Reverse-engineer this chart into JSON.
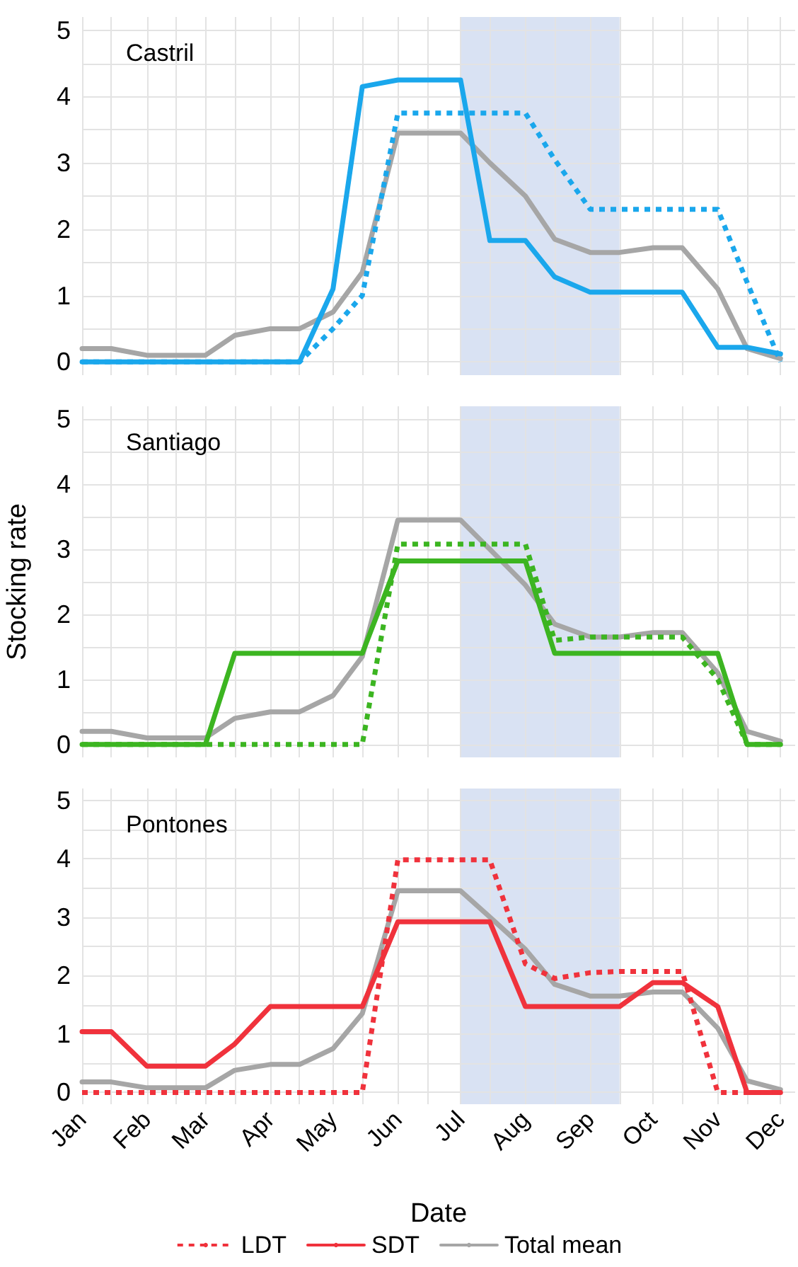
{
  "chart_data": [
    {
      "type": "line",
      "title": "Castril",
      "x": [
        "--01-01",
        "--01-15",
        "--02-01",
        "--02-15",
        "--03-01",
        "--03-15",
        "--04-01",
        "--04-15",
        "--05-01",
        "--05-15",
        "--06-01",
        "--06-15",
        "--07-01",
        "--07-15",
        "--08-01",
        "--08-15",
        "--09-01",
        "--09-15",
        "--10-01",
        "--10-15",
        "--11-01",
        "--11-15",
        "--12-01"
      ],
      "series": [
        {
          "color": "#1aa7ec",
          "line_style": "dotted",
          "values": [
            0,
            0,
            0,
            0,
            0,
            0,
            0,
            0,
            0.5,
            1.0,
            3.75,
            3.75,
            3.75,
            3.75,
            3.75,
            3.05,
            2.3,
            2.3,
            2.3,
            2.3,
            2.3,
            1.2,
            0
          ]
        },
        {
          "color": "#1aa7ec",
          "line_style": "solid",
          "values": [
            0,
            0,
            0,
            0,
            0,
            0,
            0,
            0,
            1.1,
            4.15,
            4.25,
            4.25,
            4.25,
            1.83,
            1.83,
            1.28,
            1.05,
            1.05,
            1.05,
            1.05,
            0.22,
            0.22,
            0.12
          ]
        },
        {
          "color": "#a6a6a6",
          "line_style": "solid",
          "values": [
            0.2,
            0.2,
            0.1,
            0.1,
            0.1,
            0.4,
            0.5,
            0.5,
            0.75,
            1.35,
            3.45,
            3.45,
            3.45,
            3.0,
            2.5,
            1.85,
            1.65,
            1.65,
            1.72,
            1.72,
            1.1,
            0.2,
            0.05
          ]
        }
      ],
      "xlim": [
        "--01-01",
        "--12-08"
      ],
      "ylim": [
        -0.2,
        5.2
      ],
      "xticks": [
        {
          "value": "--01-01",
          "label": "Jan"
        },
        {
          "value": "--01-15",
          "label": null
        },
        {
          "value": "--02-01",
          "label": "Feb"
        },
        {
          "value": "--02-15",
          "label": null
        },
        {
          "value": "--03-01",
          "label": "Mar"
        },
        {
          "value": "--03-15",
          "label": null
        },
        {
          "value": "--04-01",
          "label": "Apr"
        },
        {
          "value": "--04-15",
          "label": null
        },
        {
          "value": "--05-01",
          "label": "May"
        },
        {
          "value": "--05-15",
          "label": null
        },
        {
          "value": "--06-01",
          "label": "Jun"
        },
        {
          "value": "--06-15",
          "label": null
        },
        {
          "value": "--07-01",
          "label": "Jul"
        },
        {
          "value": "--07-15",
          "label": null
        },
        {
          "value": "--08-01",
          "label": "Aug"
        },
        {
          "value": "--08-15",
          "label": null
        },
        {
          "value": "--09-01",
          "label": "Sep"
        },
        {
          "value": "--09-15",
          "label": null
        },
        {
          "value": "--10-01",
          "label": "Oct"
        },
        {
          "value": "--10-15",
          "label": null
        },
        {
          "value": "--11-01",
          "label": "Nov"
        },
        {
          "value": "--11-15",
          "label": null
        },
        {
          "value": "--12-01",
          "label": "Dec"
        }
      ],
      "yticks": [
        0,
        {
          "value": 0.5,
          "label": null
        },
        1,
        {
          "value": 1.5,
          "label": null
        },
        2,
        {
          "value": 2.5,
          "label": null
        },
        3,
        {
          "value": 3.5,
          "label": null
        },
        4,
        {
          "value": 4.5,
          "label": null
        },
        5
      ],
      "bands": [
        {
          "axis": "x",
          "from": "--07-01",
          "to": "--09-15",
          "color": "#d9e2f3"
        }
      ],
      "grid": true,
      "marker": "none",
      "tick_labels": "y"
    },
    {
      "type": "line",
      "title": "Santiago",
      "ylabel": "Stocking rate",
      "x": [
        "--01-01",
        "--01-15",
        "--02-01",
        "--02-15",
        "--03-01",
        "--03-15",
        "--04-01",
        "--04-15",
        "--05-01",
        "--05-15",
        "--06-01",
        "--06-15",
        "--07-01",
        "--07-15",
        "--08-01",
        "--08-15",
        "--09-01",
        "--09-15",
        "--10-01",
        "--10-15",
        "--11-01",
        "--11-15",
        "--12-01"
      ],
      "series": [
        {
          "color": "#3cb521",
          "line_style": "dotted",
          "values": [
            0,
            0,
            0,
            0,
            0,
            0,
            0,
            0,
            0,
            0,
            3.08,
            3.08,
            3.08,
            3.08,
            3.08,
            1.6,
            1.65,
            1.65,
            1.65,
            1.65,
            1.0,
            0,
            0
          ]
        },
        {
          "color": "#3cb521",
          "line_style": "solid",
          "values": [
            0,
            0,
            0,
            0,
            0,
            1.4,
            1.4,
            1.4,
            1.4,
            1.4,
            2.82,
            2.82,
            2.82,
            2.82,
            2.82,
            1.4,
            1.4,
            1.4,
            1.4,
            1.4,
            1.4,
            0,
            0
          ]
        },
        {
          "color": "#a6a6a6",
          "line_style": "solid",
          "values": [
            0.2,
            0.2,
            0.1,
            0.1,
            0.1,
            0.4,
            0.5,
            0.5,
            0.75,
            1.35,
            3.45,
            3.45,
            3.45,
            3.0,
            2.45,
            1.85,
            1.65,
            1.65,
            1.72,
            1.72,
            1.1,
            0.2,
            0.05
          ]
        }
      ],
      "xlim": [
        "--01-01",
        "--12-08"
      ],
      "ylim": [
        -0.2,
        5.2
      ],
      "xticks": [
        {
          "value": "--01-01",
          "label": "Jan"
        },
        {
          "value": "--01-15",
          "label": null
        },
        {
          "value": "--02-01",
          "label": "Feb"
        },
        {
          "value": "--02-15",
          "label": null
        },
        {
          "value": "--03-01",
          "label": "Mar"
        },
        {
          "value": "--03-15",
          "label": null
        },
        {
          "value": "--04-01",
          "label": "Apr"
        },
        {
          "value": "--04-15",
          "label": null
        },
        {
          "value": "--05-01",
          "label": "May"
        },
        {
          "value": "--05-15",
          "label": null
        },
        {
          "value": "--06-01",
          "label": "Jun"
        },
        {
          "value": "--06-15",
          "label": null
        },
        {
          "value": "--07-01",
          "label": "Jul"
        },
        {
          "value": "--07-15",
          "label": null
        },
        {
          "value": "--08-01",
          "label": "Aug"
        },
        {
          "value": "--08-15",
          "label": null
        },
        {
          "value": "--09-01",
          "label": "Sep"
        },
        {
          "value": "--09-15",
          "label": null
        },
        {
          "value": "--10-01",
          "label": "Oct"
        },
        {
          "value": "--10-15",
          "label": null
        },
        {
          "value": "--11-01",
          "label": "Nov"
        },
        {
          "value": "--11-15",
          "label": null
        },
        {
          "value": "--12-01",
          "label": "Dec"
        }
      ],
      "yticks": [
        0,
        {
          "value": 0.5,
          "label": null
        },
        1,
        {
          "value": 1.5,
          "label": null
        },
        2,
        {
          "value": 2.5,
          "label": null
        },
        3,
        {
          "value": 3.5,
          "label": null
        },
        4,
        {
          "value": 4.5,
          "label": null
        },
        5
      ],
      "bands": [
        {
          "axis": "x",
          "from": "--07-01",
          "to": "--09-15",
          "color": "#d9e2f3"
        }
      ],
      "grid": true,
      "marker": "none",
      "tick_labels": "y"
    },
    {
      "type": "line",
      "title": "Pontones",
      "xlabel": "Date",
      "x": [
        "--01-01",
        "--01-15",
        "--02-01",
        "--02-15",
        "--03-01",
        "--03-15",
        "--04-01",
        "--04-15",
        "--05-01",
        "--05-15",
        "--06-01",
        "--06-15",
        "--07-01",
        "--07-15",
        "--08-01",
        "--08-15",
        "--09-01",
        "--09-15",
        "--10-01",
        "--10-15",
        "--11-01",
        "--11-15",
        "--12-01"
      ],
      "series": [
        {
          "name": "LDT",
          "color": "#f0323c",
          "line_style": "dotted",
          "values": [
            0,
            0,
            0,
            0,
            0,
            0,
            0,
            0,
            0,
            0,
            3.98,
            3.98,
            3.98,
            3.98,
            2.2,
            1.95,
            2.05,
            2.07,
            2.07,
            2.07,
            0,
            0,
            0
          ]
        },
        {
          "name": "SDT",
          "color": "#f0323c",
          "line_style": "solid",
          "values": [
            1.04,
            1.04,
            0.45,
            0.45,
            0.45,
            0.83,
            1.47,
            1.47,
            1.47,
            1.47,
            2.92,
            2.92,
            2.92,
            2.92,
            1.47,
            1.47,
            1.47,
            1.47,
            1.88,
            1.88,
            1.47,
            0,
            0
          ]
        },
        {
          "name": "Total mean",
          "color": "#a6a6a6",
          "line_style": "solid",
          "values": [
            0.18,
            0.18,
            0.08,
            0.08,
            0.08,
            0.38,
            0.48,
            0.48,
            0.75,
            1.35,
            3.45,
            3.45,
            3.45,
            3.0,
            2.45,
            1.85,
            1.65,
            1.65,
            1.72,
            1.72,
            1.1,
            0.2,
            0.05
          ]
        }
      ],
      "xlim": [
        "--01-01",
        "--12-08"
      ],
      "ylim": [
        -0.2,
        5.2
      ],
      "xticks": [
        {
          "value": "--01-01",
          "label": "Jan"
        },
        {
          "value": "--01-15",
          "label": null
        },
        {
          "value": "--02-01",
          "label": "Feb"
        },
        {
          "value": "--02-15",
          "label": null
        },
        {
          "value": "--03-01",
          "label": "Mar"
        },
        {
          "value": "--03-15",
          "label": null
        },
        {
          "value": "--04-01",
          "label": "Apr"
        },
        {
          "value": "--04-15",
          "label": null
        },
        {
          "value": "--05-01",
          "label": "May"
        },
        {
          "value": "--05-15",
          "label": null
        },
        {
          "value": "--06-01",
          "label": "Jun"
        },
        {
          "value": "--06-15",
          "label": null
        },
        {
          "value": "--07-01",
          "label": "Jul"
        },
        {
          "value": "--07-15",
          "label": null
        },
        {
          "value": "--08-01",
          "label": "Aug"
        },
        {
          "value": "--08-15",
          "label": null
        },
        {
          "value": "--09-01",
          "label": "Sep"
        },
        {
          "value": "--09-15",
          "label": null
        },
        {
          "value": "--10-01",
          "label": "Oct"
        },
        {
          "value": "--10-15",
          "label": null
        },
        {
          "value": "--11-01",
          "label": "Nov"
        },
        {
          "value": "--11-15",
          "label": null
        },
        {
          "value": "--12-01",
          "label": "Dec"
        }
      ],
      "yticks": [
        0,
        {
          "value": 0.5,
          "label": null
        },
        1,
        {
          "value": 1.5,
          "label": null
        },
        2,
        {
          "value": 2.5,
          "label": null
        },
        3,
        {
          "value": 3.5,
          "label": null
        },
        4,
        {
          "value": 4.5,
          "label": null
        },
        5
      ],
      "bands": [
        {
          "axis": "x",
          "from": "--07-01",
          "to": "--09-15",
          "color": "#d9e2f3"
        }
      ],
      "grid": true,
      "marker": "none",
      "legend": "bottom"
    }
  ]
}
